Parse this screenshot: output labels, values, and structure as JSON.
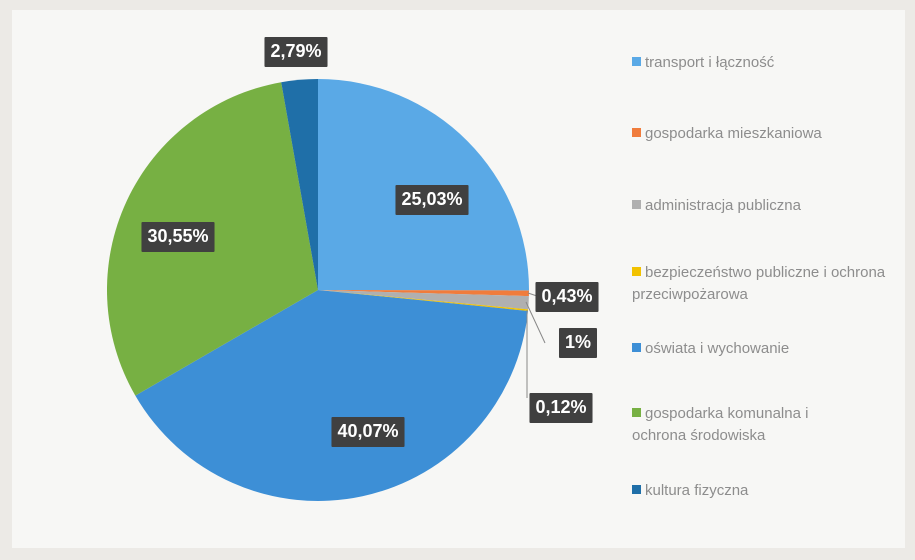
{
  "chart_data": {
    "type": "pie",
    "categories": [
      "transport i łączność",
      "gospodarka mieszkaniowa",
      "administracja publiczna",
      "bezpieczeństwo publiczne i ochrona przeciwpożarowa",
      "oświata i wychowanie",
      "gospodarka komunalna i ochrona środowiska",
      "kultura fizyczna"
    ],
    "values": [
      25.03,
      0.43,
      1,
      0.12,
      40.07,
      30.55,
      2.79
    ],
    "value_labels": [
      "25,03%",
      "0,43%",
      "1%",
      "0,12%",
      "40,07%",
      "30,55%",
      "2,79%"
    ],
    "colors": [
      "#5aa9e6",
      "#f07c3c",
      "#b0b0b0",
      "#f2c200",
      "#3d8fd6",
      "#77b043",
      "#1f6fa8"
    ],
    "legend": "right"
  }
}
